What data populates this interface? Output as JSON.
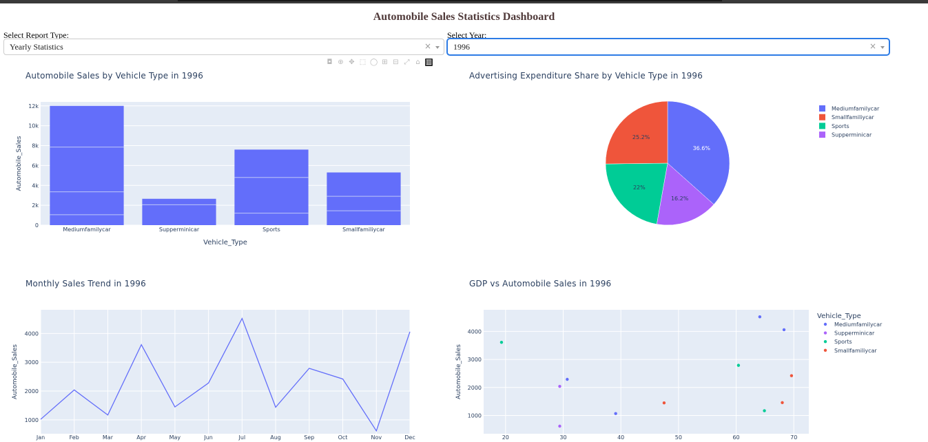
{
  "header": {
    "title": "Automobile Sales Statistics Dashboard"
  },
  "controls": {
    "report_type": {
      "label": "Select Report Type:",
      "value": "Yearly Statistics",
      "clear_glyph": "×"
    },
    "year": {
      "label": "Select Year:",
      "value": "1996",
      "clear_glyph": "×"
    }
  },
  "modebar": {
    "icons": [
      "camera-icon",
      "zoom-icon",
      "pan-icon",
      "box-select-icon",
      "lasso-icon",
      "zoom-in-icon",
      "zoom-out-icon",
      "autoscale-icon",
      "reset-axes-icon",
      "plotly-logo-icon"
    ],
    "glyphs": [
      "◘",
      "⊕",
      "✥",
      "⬚",
      "◯",
      "⊞",
      "⊟",
      "⤢",
      "⌂",
      "▥"
    ]
  },
  "colors": {
    "plot_bg": "#e5ecf6",
    "grid": "#ffffff",
    "axis_text": "#2a3f5f",
    "Mediumfamilycar": "#636efa",
    "Smallfamiliycar": "#ef553b",
    "Sports": "#00cc96",
    "Supperminicar": "#ab63fa"
  },
  "chart_data": [
    {
      "id": "bar",
      "type": "bar",
      "title": "Automobile Sales by Vehicle Type in 1996",
      "xlabel": "Vehicle_Type",
      "ylabel": "Automobile_Sales",
      "categories": [
        "Mediumfamilycar",
        "Supperminicar",
        "Sports",
        "Smallfamiliycar"
      ],
      "values": [
        12000,
        2650,
        7600,
        5300
      ],
      "stack_segments": [
        [
          1050,
          3350,
          7850,
          12000
        ],
        [
          2050,
          2650
        ],
        [
          1200,
          4800,
          7600
        ],
        [
          1450,
          2900,
          5300
        ]
      ],
      "ylim": [
        0,
        12400
      ],
      "yticks": [
        0,
        2000,
        4000,
        6000,
        8000,
        10000,
        12000
      ],
      "ytick_labels": [
        "0",
        "2k",
        "4k",
        "6k",
        "8k",
        "10k",
        "12k"
      ]
    },
    {
      "id": "pie",
      "type": "pie",
      "title": "Advertising Expenditure Share by Vehicle Type in 1996",
      "labels": [
        "Mediumfamilycar",
        "Supperminicar",
        "Sports",
        "Smallfamiliycar"
      ],
      "values": [
        36.6,
        16.2,
        22.0,
        25.2
      ],
      "value_labels": [
        "36.6%",
        "16.2%",
        "22%",
        "25.2%"
      ],
      "legend": [
        "Mediumfamilycar",
        "Smallfamiliycar",
        "Sports",
        "Supperminicar"
      ],
      "legend_placement": "right"
    },
    {
      "id": "line",
      "type": "line",
      "title": "Monthly Sales Trend in 1996",
      "ylabel": "Automobile_Sales",
      "x": [
        "Jan",
        "Feb",
        "Mar",
        "Apr",
        "May",
        "Jun",
        "Jul",
        "Aug",
        "Sep",
        "Oct",
        "Nov",
        "Dec"
      ],
      "y": [
        1020,
        2040,
        1170,
        3610,
        1450,
        2280,
        4520,
        1440,
        2790,
        2420,
        620,
        4060
      ],
      "ylim": [
        520,
        4820
      ],
      "yticks": [
        1000,
        2000,
        3000,
        4000
      ]
    },
    {
      "id": "scatter",
      "type": "scatter",
      "title": "GDP vs Automobile Sales in 1996",
      "ylabel": "Automobile_Sales",
      "legend_title": "Vehicle_Type",
      "legend_placement": "right",
      "xlim": [
        16.2,
        72.6
      ],
      "ylim": [
        350,
        4770
      ],
      "xticks": [
        20,
        30,
        40,
        50,
        60,
        70
      ],
      "yticks": [
        1000,
        2000,
        3000,
        4000
      ],
      "series": [
        {
          "name": "Mediumfamilycar",
          "points": [
            [
              30.7,
              2290
            ],
            [
              39.1,
              1070
            ],
            [
              64.1,
              4520
            ],
            [
              68.3,
              4060
            ]
          ]
        },
        {
          "name": "Supperminicar",
          "points": [
            [
              29.4,
              2040
            ],
            [
              29.4,
              620
            ]
          ]
        },
        {
          "name": "Sports",
          "points": [
            [
              19.3,
              3610
            ],
            [
              60.4,
              2790
            ],
            [
              64.9,
              1170
            ]
          ]
        },
        {
          "name": "Smallfamiliycar",
          "points": [
            [
              47.5,
              1450
            ],
            [
              68.0,
              1460
            ],
            [
              69.6,
              2420
            ]
          ]
        }
      ]
    }
  ]
}
